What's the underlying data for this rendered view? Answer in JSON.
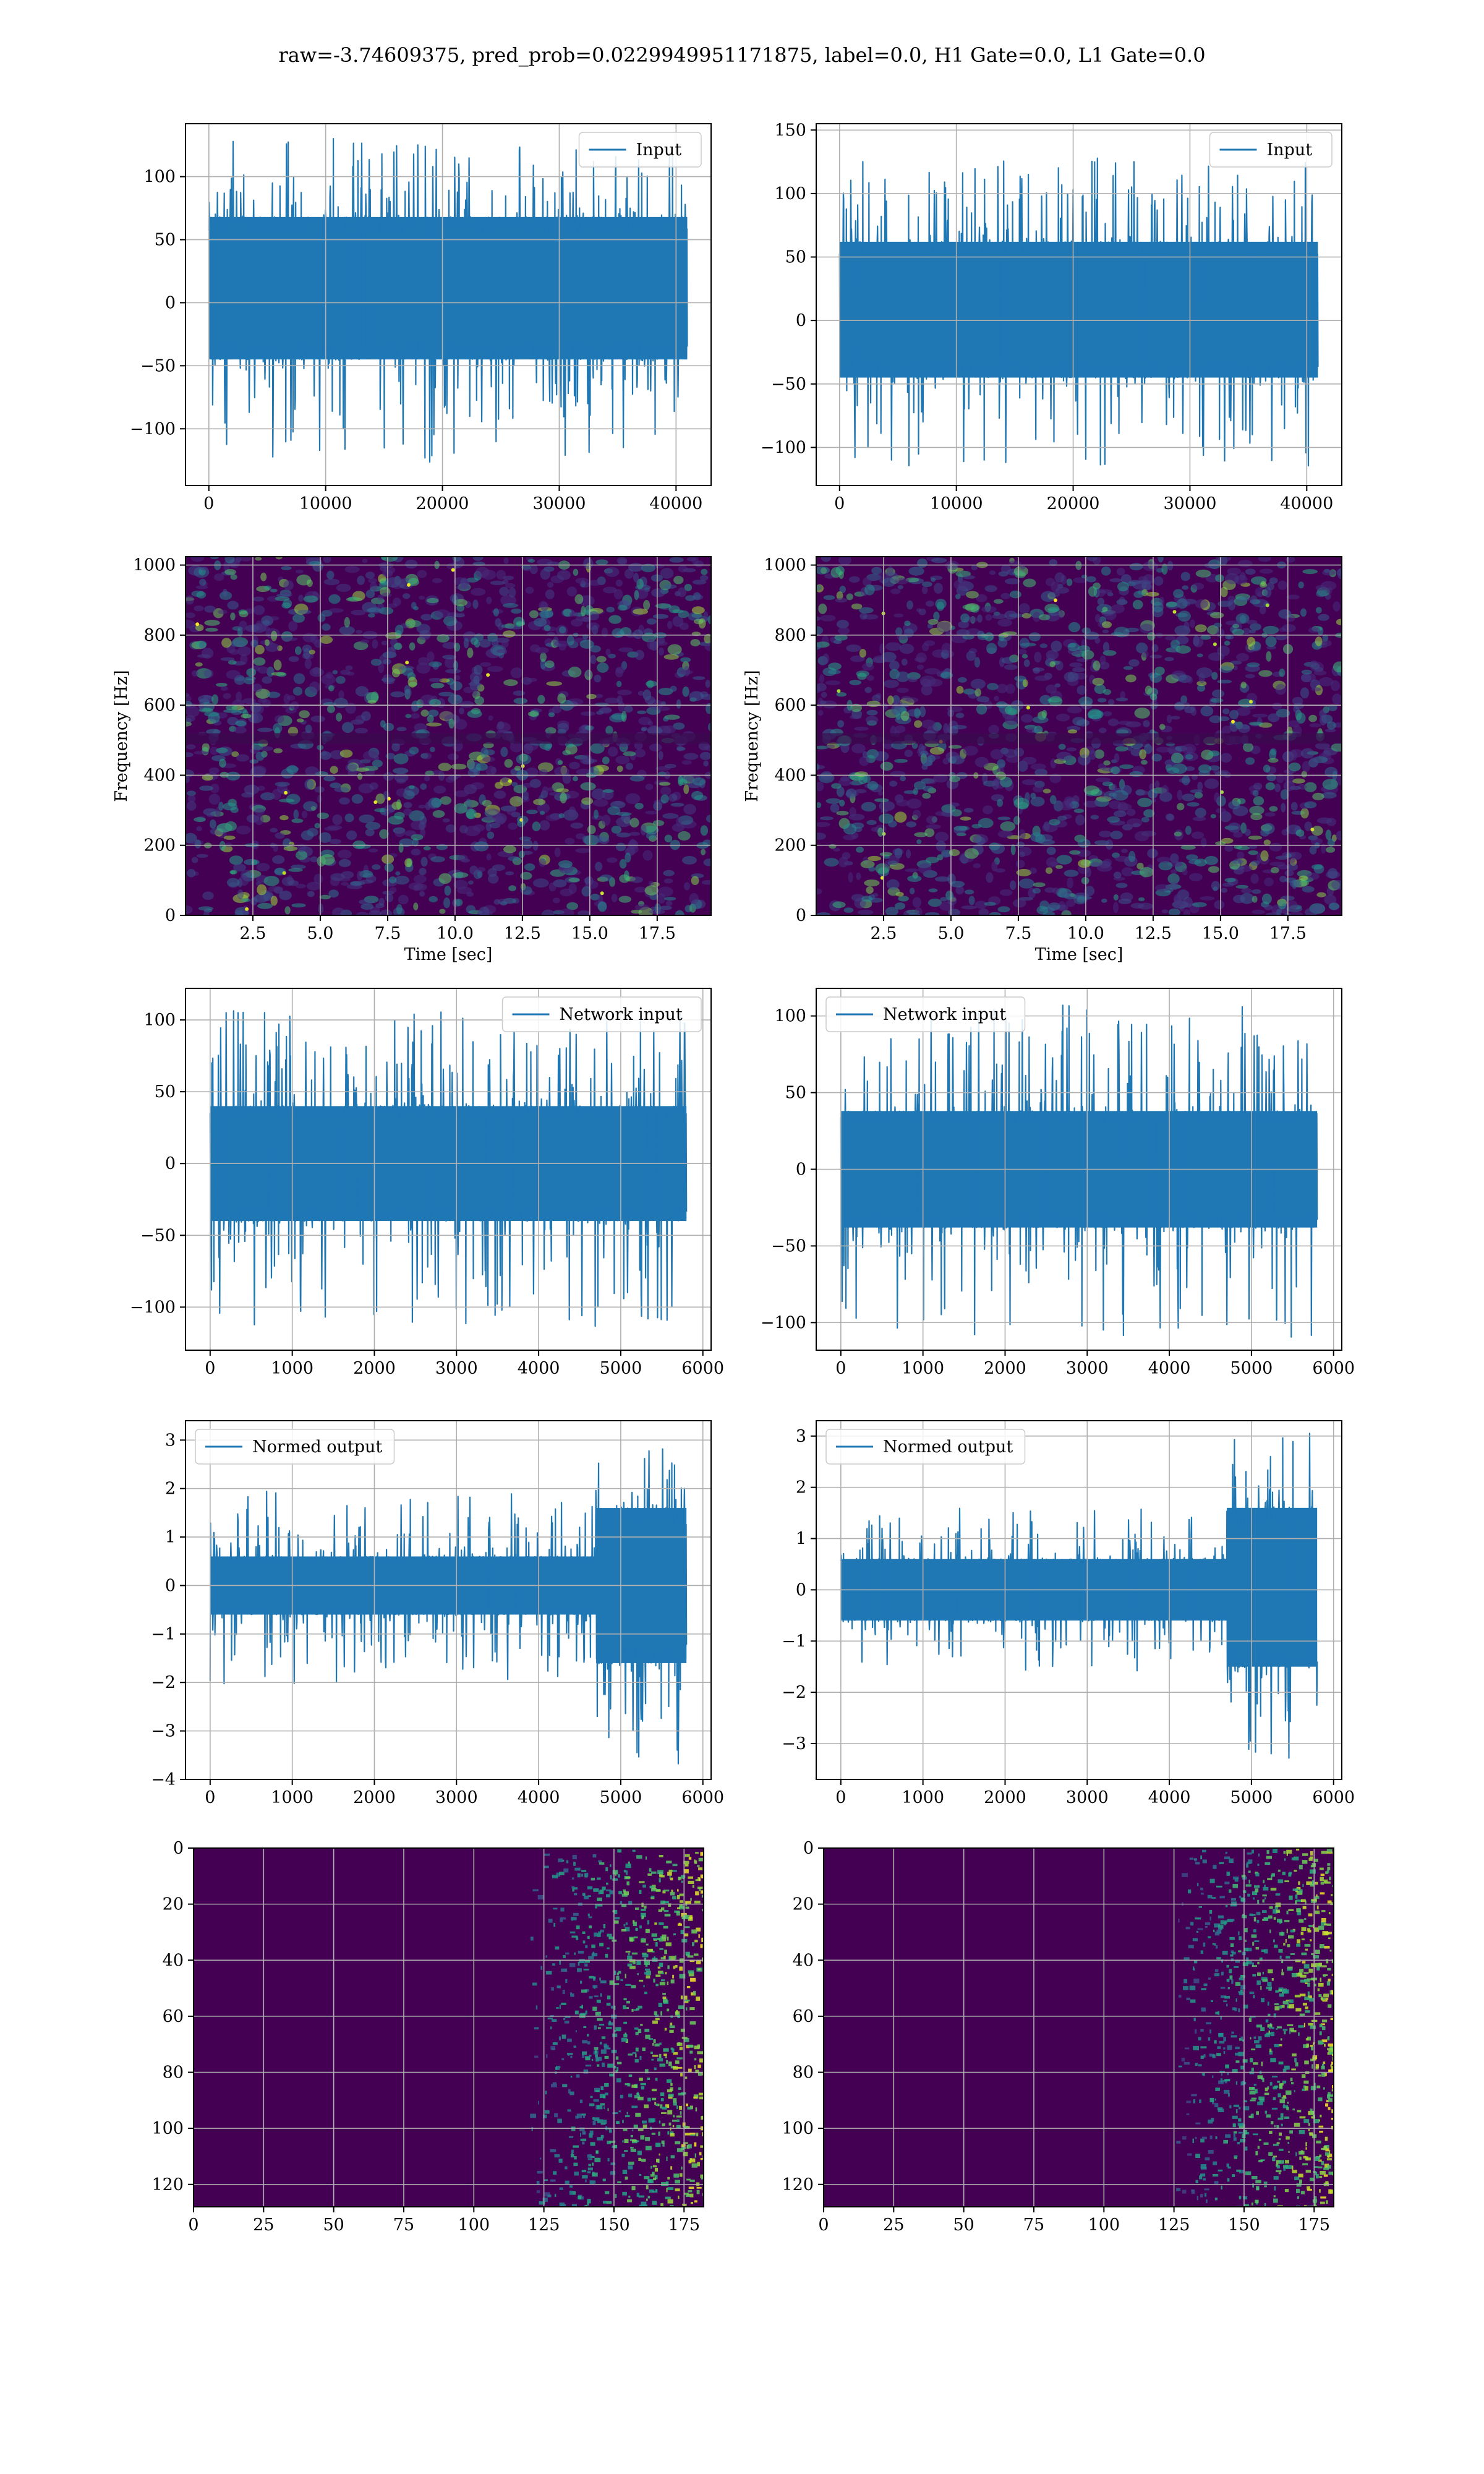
{
  "title": "raw=-3.74609375, pred_prob=0.0229949951171875, label=0.0, H1 Gate=0.0, L1 Gate=0.0",
  "colors": {
    "line": "#1f77b4",
    "grid": "#b0b0b0",
    "viridis_dark": "#440154",
    "viridis_mid": "#21908d",
    "viridis_bright": "#fde725"
  },
  "chart_data": [
    {
      "id": "input-h1",
      "type": "line",
      "legend": "Input",
      "legend_loc": "upper right",
      "grid": true,
      "xlim": [
        -2000,
        43000
      ],
      "ylim": [
        -145,
        142
      ],
      "xticks": [
        0,
        10000,
        20000,
        30000,
        40000
      ],
      "yticks": [
        -100,
        -50,
        0,
        50,
        100
      ],
      "series": [
        {
          "name": "Input",
          "x_range": [
            0,
            40960
          ],
          "core": [
            -45,
            68
          ],
          "extreme": [
            -130,
            132
          ]
        }
      ]
    },
    {
      "id": "input-l1",
      "type": "line",
      "legend": "Input",
      "legend_loc": "upper right",
      "grid": true,
      "xlim": [
        -2000,
        43000
      ],
      "ylim": [
        -130,
        155
      ],
      "xticks": [
        0,
        10000,
        20000,
        30000,
        40000
      ],
      "yticks": [
        -100,
        -50,
        0,
        50,
        100,
        150
      ],
      "series": [
        {
          "name": "Input",
          "x_range": [
            0,
            40960
          ],
          "core": [
            -45,
            62
          ],
          "extreme": [
            -115,
            128
          ]
        }
      ]
    },
    {
      "id": "spectrogram-h1",
      "type": "heatmap",
      "xlabel": "Time [sec]",
      "ylabel": "Frequency [Hz]",
      "grid": true,
      "xlim": [
        0,
        19.5
      ],
      "ylim": [
        0,
        1024
      ],
      "xticks": [
        2.5,
        5.0,
        7.5,
        10.0,
        12.5,
        15.0,
        17.5
      ],
      "yticks": [
        0,
        200,
        400,
        600,
        800,
        1000
      ],
      "dark_band_hz": [
        490,
        520
      ]
    },
    {
      "id": "spectrogram-l1",
      "type": "heatmap",
      "xlabel": "Time [sec]",
      "ylabel": "Frequency [Hz]",
      "grid": true,
      "xlim": [
        0,
        19.5
      ],
      "ylim": [
        0,
        1024
      ],
      "xticks": [
        2.5,
        5.0,
        7.5,
        10.0,
        12.5,
        15.0,
        17.5
      ],
      "yticks": [
        0,
        200,
        400,
        600,
        800,
        1000
      ],
      "dark_band_hz": [
        490,
        520
      ]
    },
    {
      "id": "network-input-h1",
      "type": "line",
      "legend": "Network input",
      "legend_loc": "upper right",
      "grid": true,
      "xlim": [
        -300,
        6100
      ],
      "ylim": [
        -130,
        122
      ],
      "xticks": [
        0,
        1000,
        2000,
        3000,
        4000,
        5000,
        6000
      ],
      "yticks": [
        -100,
        -50,
        0,
        50,
        100
      ],
      "series": [
        {
          "name": "Network input",
          "x_range": [
            0,
            5800
          ],
          "core": [
            -40,
            40
          ],
          "extreme": [
            -116,
            107
          ]
        }
      ]
    },
    {
      "id": "network-input-l1",
      "type": "line",
      "legend": "Network input",
      "legend_loc": "upper left",
      "grid": true,
      "xlim": [
        -300,
        6100
      ],
      "ylim": [
        -118,
        118
      ],
      "xticks": [
        0,
        1000,
        2000,
        3000,
        4000,
        5000,
        6000
      ],
      "yticks": [
        -100,
        -50,
        0,
        50,
        100
      ],
      "series": [
        {
          "name": "Network input",
          "x_range": [
            0,
            5800
          ],
          "core": [
            -38,
            38
          ],
          "extreme": [
            -110,
            107
          ]
        }
      ]
    },
    {
      "id": "normed-output-h1",
      "type": "line",
      "legend": "Normed output",
      "legend_loc": "upper left",
      "grid": true,
      "xlim": [
        -300,
        6100
      ],
      "ylim": [
        -4.0,
        3.4
      ],
      "xticks": [
        0,
        1000,
        2000,
        3000,
        4000,
        5000,
        6000
      ],
      "yticks": [
        -4,
        -3,
        -2,
        -1,
        0,
        1,
        2,
        3
      ],
      "series": [
        {
          "name": "Normed output",
          "x_range": [
            0,
            5800
          ],
          "core": [
            -0.6,
            0.6
          ],
          "extreme": [
            -2.1,
            2.0
          ],
          "burst_start": 4700,
          "burst_core": [
            -1.6,
            1.6
          ],
          "burst_extreme": [
            -3.7,
            3.1
          ]
        }
      ]
    },
    {
      "id": "normed-output-l1",
      "type": "line",
      "legend": "Normed output",
      "legend_loc": "upper left",
      "grid": true,
      "xlim": [
        -300,
        6100
      ],
      "ylim": [
        -3.7,
        3.3
      ],
      "xticks": [
        0,
        1000,
        2000,
        3000,
        4000,
        5000,
        6000
      ],
      "yticks": [
        -3,
        -2,
        -1,
        0,
        1,
        2,
        3
      ],
      "series": [
        {
          "name": "Normed output",
          "x_range": [
            0,
            5800
          ],
          "core": [
            -0.6,
            0.6
          ],
          "extreme": [
            -1.6,
            1.6
          ],
          "burst_start": 4700,
          "burst_core": [
            -1.5,
            1.6
          ],
          "burst_extreme": [
            -3.4,
            3.1
          ]
        }
      ]
    },
    {
      "id": "activation-map-h1",
      "type": "heatmap",
      "grid": true,
      "xlim": [
        0,
        182
      ],
      "ylim": [
        128,
        0
      ],
      "xticks": [
        0,
        25,
        50,
        75,
        100,
        125,
        150,
        175
      ],
      "yticks": [
        0,
        20,
        40,
        60,
        80,
        100,
        120
      ],
      "activity_onset": 120
    },
    {
      "id": "activation-map-l1",
      "type": "heatmap",
      "grid": true,
      "xlim": [
        0,
        182
      ],
      "ylim": [
        128,
        0
      ],
      "xticks": [
        0,
        25,
        50,
        75,
        100,
        125,
        150,
        175
      ],
      "yticks": [
        0,
        20,
        40,
        60,
        80,
        100,
        120
      ],
      "activity_onset": 125
    }
  ]
}
